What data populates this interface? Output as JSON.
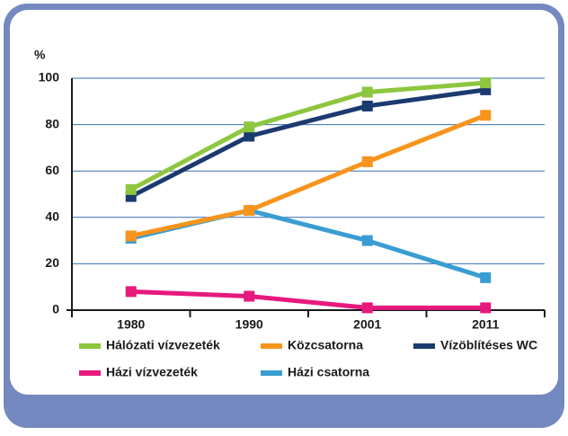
{
  "chart_data": {
    "type": "line",
    "y_label": "%",
    "categories": [
      "1980",
      "1990",
      "2001",
      "2011"
    ],
    "series": [
      {
        "name": "Hálózati vízvezeték",
        "color": "#8dc63f",
        "values": [
          52,
          79,
          94,
          98
        ]
      },
      {
        "name": "Közcsatorna",
        "color": "#f7941d",
        "values": [
          32,
          43,
          64,
          84
        ]
      },
      {
        "name": "Vízöblítéses WC",
        "color": "#1b3a6f",
        "values": [
          49,
          75,
          88,
          95
        ]
      },
      {
        "name": "Házi vízvezeték",
        "color": "#e6197d",
        "values": [
          8,
          6,
          1,
          1
        ]
      },
      {
        "name": "Házi csatorna",
        "color": "#3a9dd1",
        "values": [
          31,
          43,
          30,
          14
        ]
      }
    ],
    "ylim": [
      0,
      100
    ],
    "yticks": [
      0,
      20,
      40,
      60,
      80,
      100
    ],
    "grid": true
  }
}
